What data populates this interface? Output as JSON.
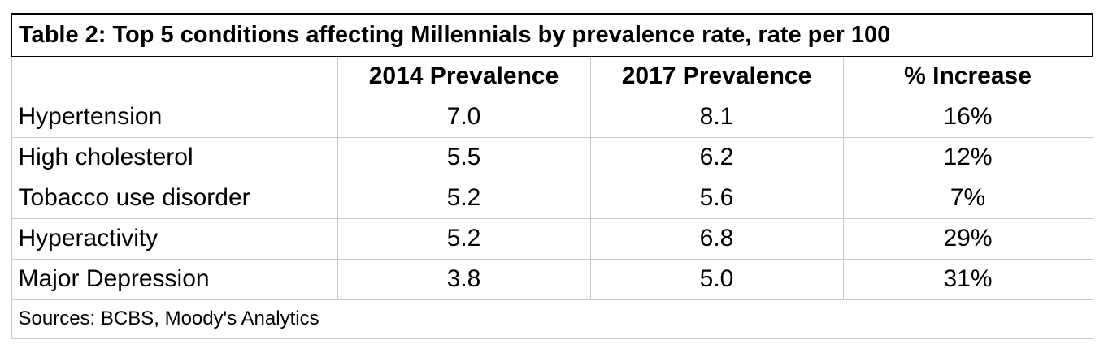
{
  "table": {
    "title": "Table 2: Top 5 conditions affecting Millennials by prevalence rate, rate per 100",
    "headers": [
      "",
      "2014 Prevalence",
      "2017 Prevalence",
      "% Increase"
    ],
    "rows": [
      {
        "condition": "Hypertension",
        "p2014": "7.0",
        "p2017": "8.1",
        "increase": "16%"
      },
      {
        "condition": "High cholesterol",
        "p2014": "5.5",
        "p2017": "6.2",
        "increase": "12%"
      },
      {
        "condition": "Tobacco use disorder",
        "p2014": "5.2",
        "p2017": "5.6",
        "increase": "7%"
      },
      {
        "condition": "Hyperactivity",
        "p2014": "5.2",
        "p2017": "6.8",
        "increase": "29%"
      },
      {
        "condition": "Major Depression",
        "p2014": "3.8",
        "p2017": "5.0",
        "increase": "31%"
      }
    ],
    "source": "Sources: BCBS, Moody's Analytics"
  },
  "colors": {
    "title_border": "#000000",
    "grid": "#c8c8c8",
    "text": "#000000",
    "background": "#ffffff"
  }
}
